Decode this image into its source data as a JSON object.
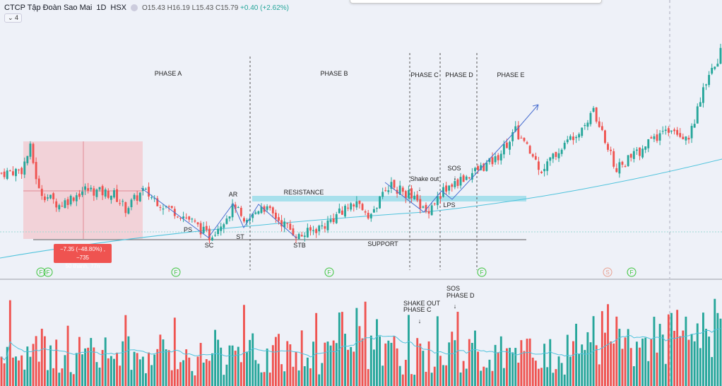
{
  "header": {
    "title": "CTCP Tập Đoàn Sao Mai",
    "interval": "1D",
    "exchange": "HSX",
    "open": "O15.43",
    "high": "H16.19",
    "low": "L15.43",
    "close": "C15.79",
    "change": "+0.40 (+2.62%)",
    "collapse_label": "4"
  },
  "colors": {
    "up": "#26a69a",
    "down": "#ef5350",
    "ma": "#4fc3dc",
    "zigzag": "#4a6fd0",
    "resistance": "#a8e0ec"
  },
  "phases": [
    "PHASE A",
    "PHASE B",
    "PHASE C",
    "PHASE D",
    "PHASE E"
  ],
  "annotations": {
    "ps": "PS",
    "sc": "SC",
    "ar": "AR",
    "st": "ST",
    "stb": "STB",
    "support": "SUPPORT",
    "resistance": "RESISTANCE",
    "shake_out": "Shake out",
    "sos": "SOS",
    "lps": "LPS"
  },
  "measure": {
    "line1": "−7.35 (−48.80%) , −735",
    "line2": "50 thanh, 77n"
  },
  "markers": [
    "F",
    "F",
    "F",
    "F",
    "F",
    "S",
    "F"
  ],
  "volume_notes": {
    "shake_line1": "SHAKE OUT",
    "shake_line2": "PHASE C",
    "sos_line1": "SOS",
    "sos_line2": "PHASE D",
    "arrow": "↓"
  },
  "chart_data": {
    "type": "candlestick",
    "bars": 250,
    "price_waypoints": [
      [
        0,
        10.61
      ],
      [
        7,
        10.77
      ],
      [
        10,
        11.78
      ],
      [
        13,
        9.77
      ],
      [
        20,
        9.1
      ],
      [
        29,
        9.84
      ],
      [
        39,
        9.6
      ],
      [
        43,
        8.93
      ],
      [
        49,
        9.77
      ],
      [
        56,
        9.1
      ],
      [
        65,
        8.43
      ],
      [
        72,
        7.6
      ],
      [
        81,
        9.1
      ],
      [
        84,
        8.1
      ],
      [
        90,
        9.1
      ],
      [
        103,
        7.6
      ],
      [
        112,
        8.16
      ],
      [
        122,
        9.27
      ],
      [
        128,
        8.6
      ],
      [
        134,
        10.04
      ],
      [
        141,
        9.6
      ],
      [
        147,
        8.77
      ],
      [
        153,
        9.77
      ],
      [
        159,
        10.27
      ],
      [
        171,
        11.27
      ],
      [
        178,
        12.61
      ],
      [
        187,
        10.77
      ],
      [
        196,
        12.11
      ],
      [
        205,
        13.45
      ],
      [
        213,
        10.77
      ],
      [
        225,
        12.11
      ],
      [
        232,
        12.78
      ],
      [
        238,
        12.28
      ],
      [
        243,
        14.45
      ],
      [
        249,
        16.29
      ]
    ],
    "volume_spikes": {
      "shake_out": 145,
      "sos": 157
    }
  }
}
